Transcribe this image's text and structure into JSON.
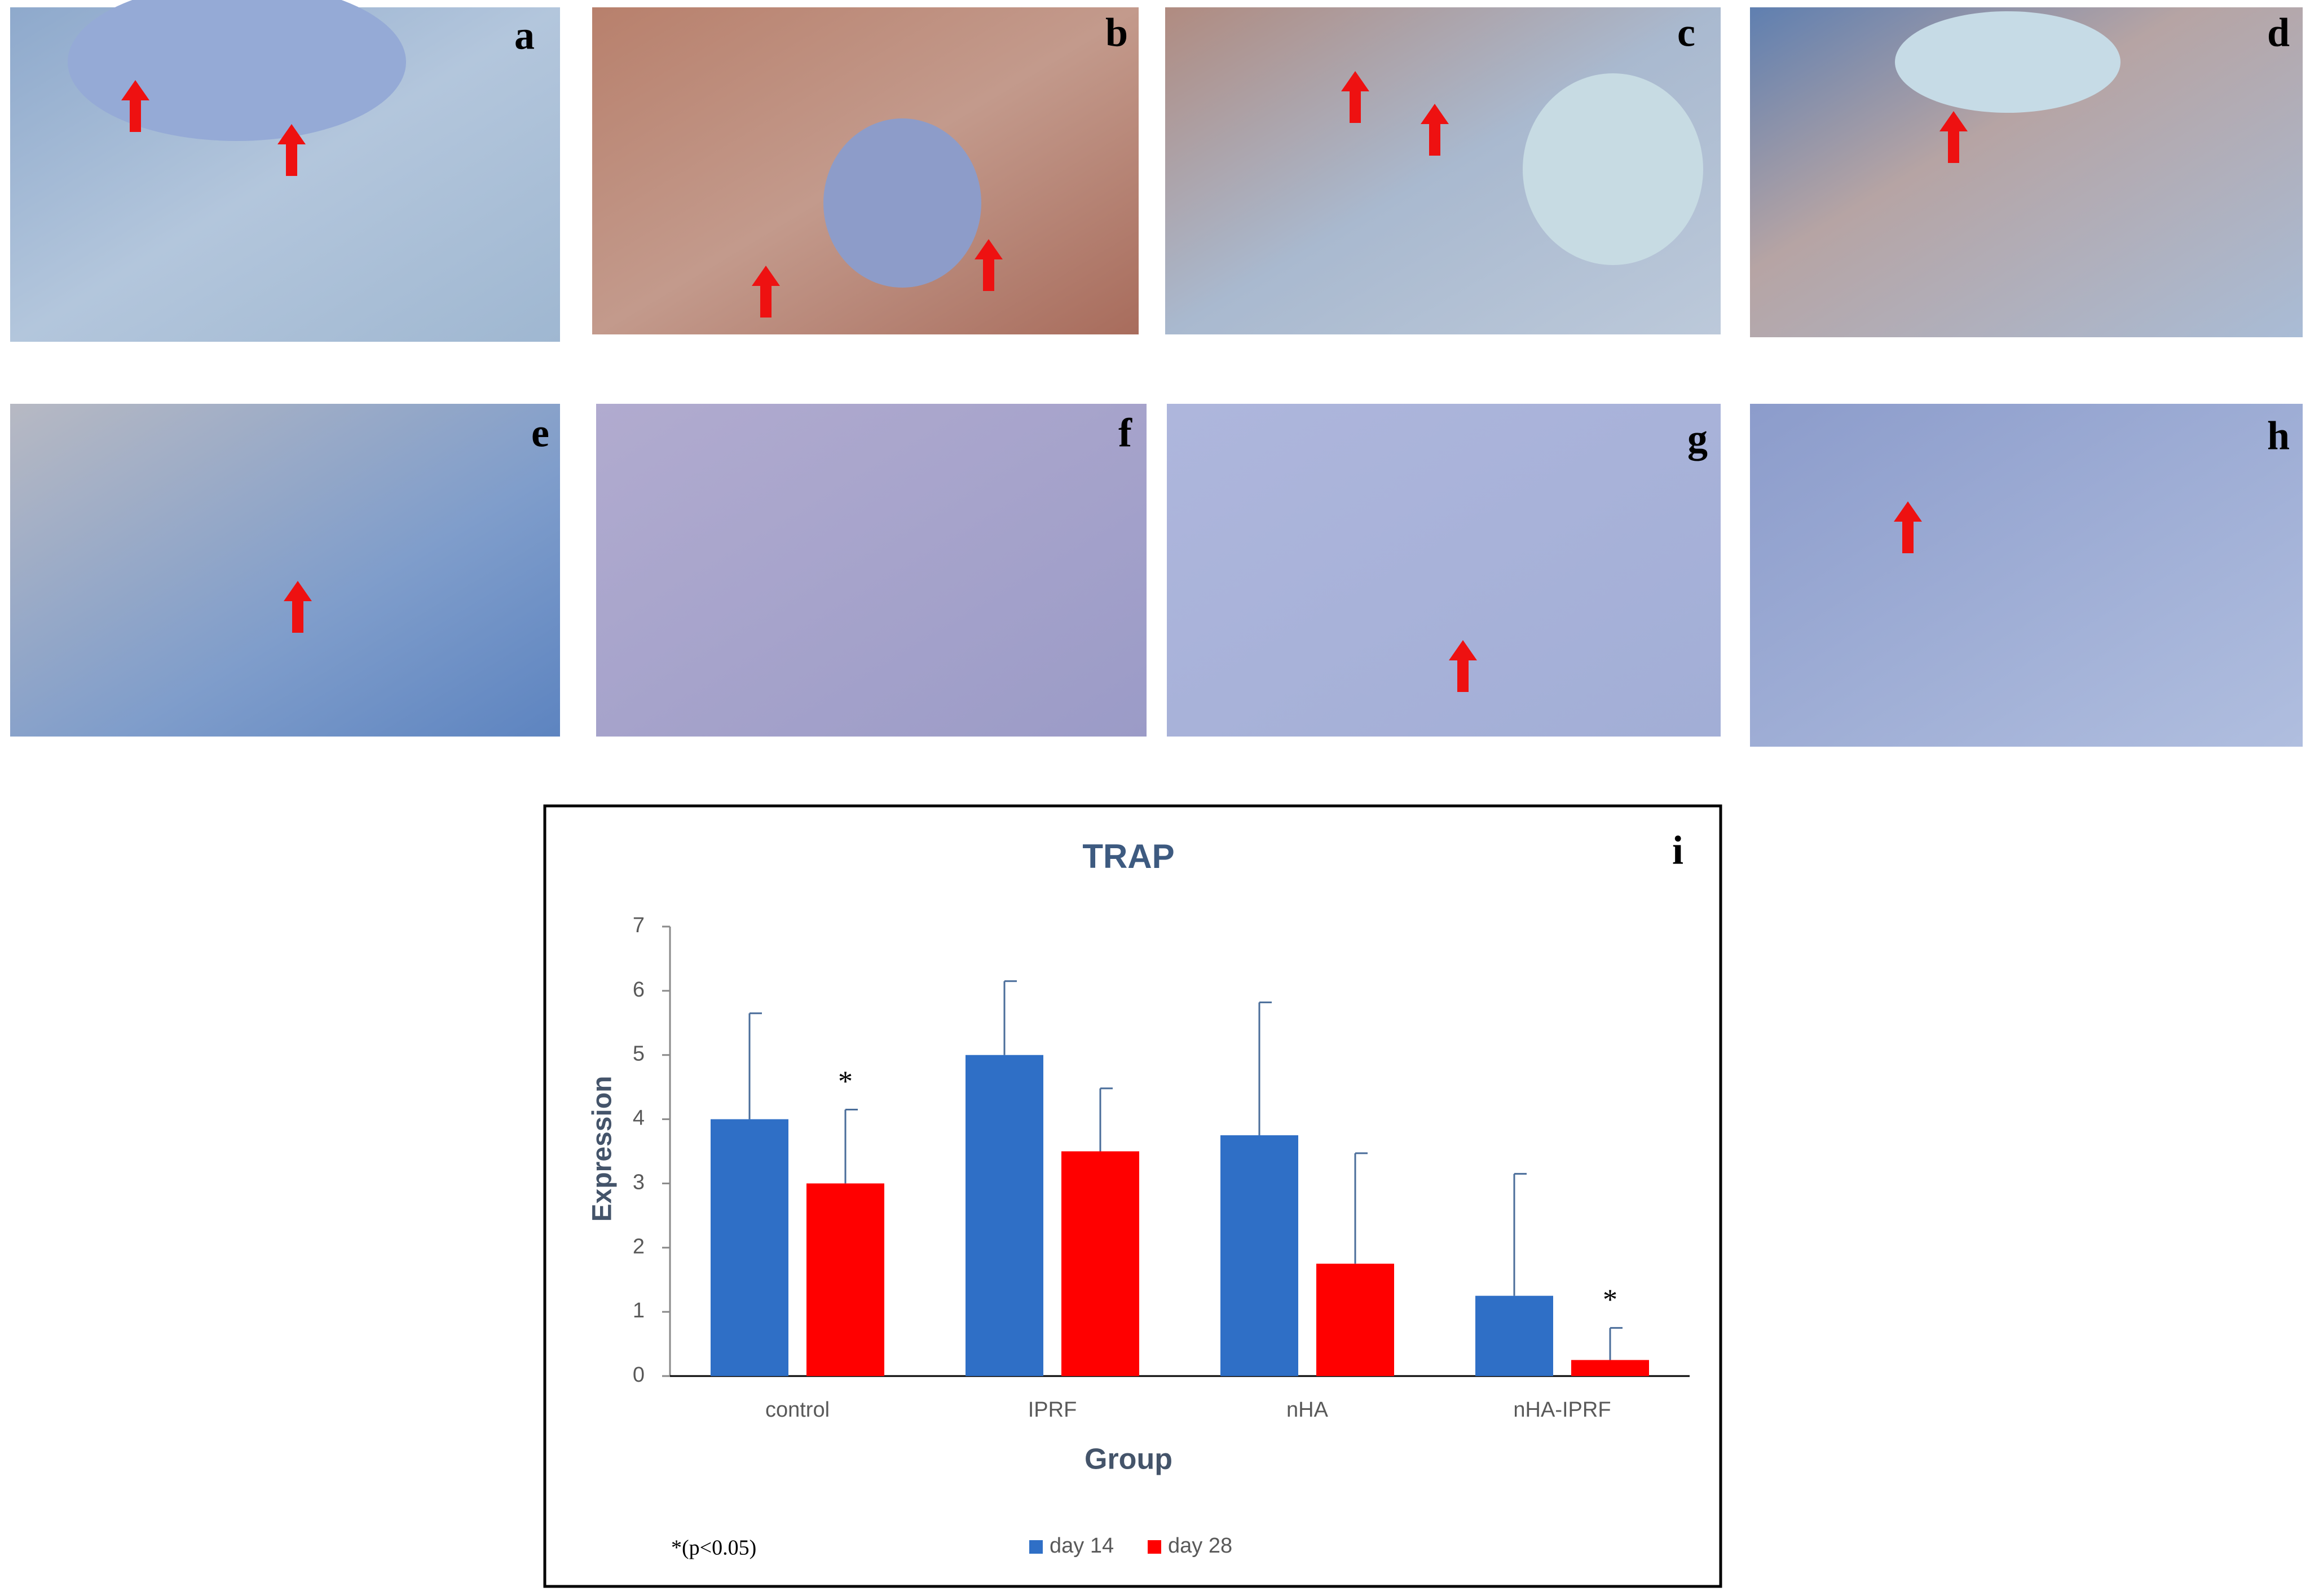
{
  "panel_labels": [
    "a",
    "b",
    "c",
    "d",
    "e",
    "f",
    "g",
    "h"
  ],
  "chart_data": {
    "type": "bar",
    "panel_label": "i",
    "title": "TRAP",
    "x_label": "Group",
    "y_label": "Expression",
    "note": "*(p<0.05)",
    "categories": [
      "control",
      "IPRF",
      "nHA",
      "nHA-IPRF"
    ],
    "series": [
      {
        "name": "day 14",
        "color": "#2f6fc6",
        "values": [
          4,
          5,
          3.75,
          1.25
        ],
        "errors": [
          1.65,
          1.15,
          2.07,
          1.9
        ],
        "annotations": [
          null,
          null,
          null,
          null
        ]
      },
      {
        "name": "day 28",
        "color": "#ff0000",
        "values": [
          3,
          3.5,
          1.75,
          0.25
        ],
        "errors": [
          1.15,
          0.98,
          1.72,
          0.5
        ],
        "annotations": [
          "*",
          null,
          null,
          "*"
        ]
      }
    ],
    "ylim": [
      0,
      7
    ],
    "yticks": [
      0,
      1,
      2,
      3,
      4,
      5,
      6,
      7
    ],
    "grid": false,
    "legend": "bottom"
  }
}
